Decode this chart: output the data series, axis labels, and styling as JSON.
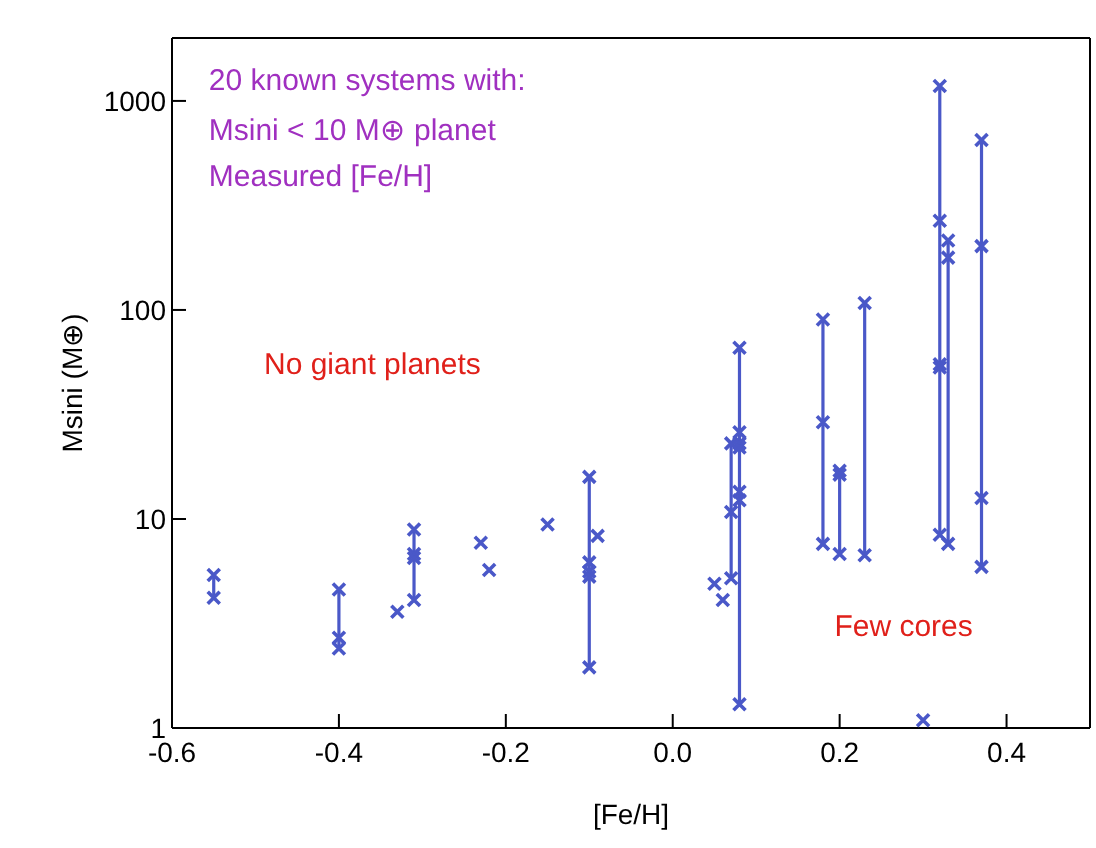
{
  "chart_data": {
    "type": "line",
    "xlabel": "[Fe/H]",
    "ylabel": "Msini (M⊕)",
    "log": "y",
    "xlim": [
      -0.6,
      0.5
    ],
    "xticks": [
      -0.6,
      -0.4,
      -0.2,
      {
        "value": 0,
        "label": "0.0"
      },
      0.2,
      0.4
    ],
    "ylim": [
      1,
      2000
    ],
    "yticks": [
      1,
      10,
      100,
      1000
    ],
    "marker": "cross",
    "line_style": "solid",
    "annotations": [
      "20 known systems with:",
      "Msini < 10 M⊕ planet",
      "Measured [Fe/H]",
      "No giant planets",
      "Few cores"
    ],
    "series": [
      {
        "color": "#4a58c8",
        "x": [
          -0.55,
          -0.55
        ],
        "values": [
          5.4,
          4.2
        ]
      },
      {
        "color": "#4a58c8",
        "x": [
          -0.4,
          -0.4,
          -0.4
        ],
        "values": [
          4.6,
          2.7,
          2.4
        ]
      },
      {
        "color": "#4a58c8",
        "x": [
          -0.33
        ],
        "values": [
          3.6
        ]
      },
      {
        "color": "#4a58c8",
        "x": [
          -0.31,
          -0.31,
          -0.31,
          -0.31
        ],
        "values": [
          8.9,
          6.8,
          6.5,
          4.1
        ]
      },
      {
        "color": "#4a58c8",
        "x": [
          -0.23
        ],
        "values": [
          7.7
        ]
      },
      {
        "color": "#4a58c8",
        "x": [
          -0.22
        ],
        "values": [
          5.7
        ]
      },
      {
        "color": "#4a58c8",
        "x": [
          -0.15
        ],
        "values": [
          9.4
        ]
      },
      {
        "color": "#4a58c8",
        "x": [
          -0.1,
          -0.1,
          -0.1,
          -0.1,
          -0.1
        ],
        "values": [
          15.9,
          6.2,
          5.6,
          5.3,
          1.95
        ]
      },
      {
        "color": "#4a58c8",
        "x": [
          -0.09
        ],
        "values": [
          8.3
        ]
      },
      {
        "color": "#4a58c8",
        "x": [
          0.05
        ],
        "values": [
          4.9
        ]
      },
      {
        "color": "#4a58c8",
        "x": [
          0.06
        ],
        "values": [
          4.1
        ]
      },
      {
        "color": "#4a58c8",
        "x": [
          0.07,
          0.07,
          0.07
        ],
        "values": [
          23,
          10.8,
          5.2
        ]
      },
      {
        "color": "#4a58c8",
        "x": [
          0.08,
          0.08,
          0.08,
          0.08,
          0.08,
          0.08,
          0.08
        ],
        "values": [
          66,
          26,
          23,
          22,
          13.5,
          12.3,
          1.3
        ]
      },
      {
        "color": "#4a58c8",
        "x": [
          0.18,
          0.18,
          0.18
        ],
        "values": [
          90,
          29,
          7.6
        ]
      },
      {
        "color": "#4a58c8",
        "x": [
          0.2,
          0.2,
          0.2
        ],
        "values": [
          17,
          16.3,
          6.8
        ]
      },
      {
        "color": "#4a58c8",
        "x": [
          0.23,
          0.23
        ],
        "values": [
          108,
          6.7
        ]
      },
      {
        "color": "#4a58c8",
        "x": [
          0.3
        ],
        "values": [
          1.09
        ]
      },
      {
        "color": "#4a58c8",
        "x": [
          0.32,
          0.32,
          0.32,
          0.32,
          0.32
        ],
        "values": [
          1180,
          267,
          55,
          53,
          8.4
        ]
      },
      {
        "color": "#4a58c8",
        "x": [
          0.33,
          0.33,
          0.33
        ],
        "values": [
          215,
          178,
          7.6
        ]
      },
      {
        "color": "#4a58c8",
        "x": [
          0.37,
          0.37,
          0.37,
          0.37
        ],
        "values": [
          650,
          202,
          12.6,
          5.9
        ]
      }
    ]
  }
}
